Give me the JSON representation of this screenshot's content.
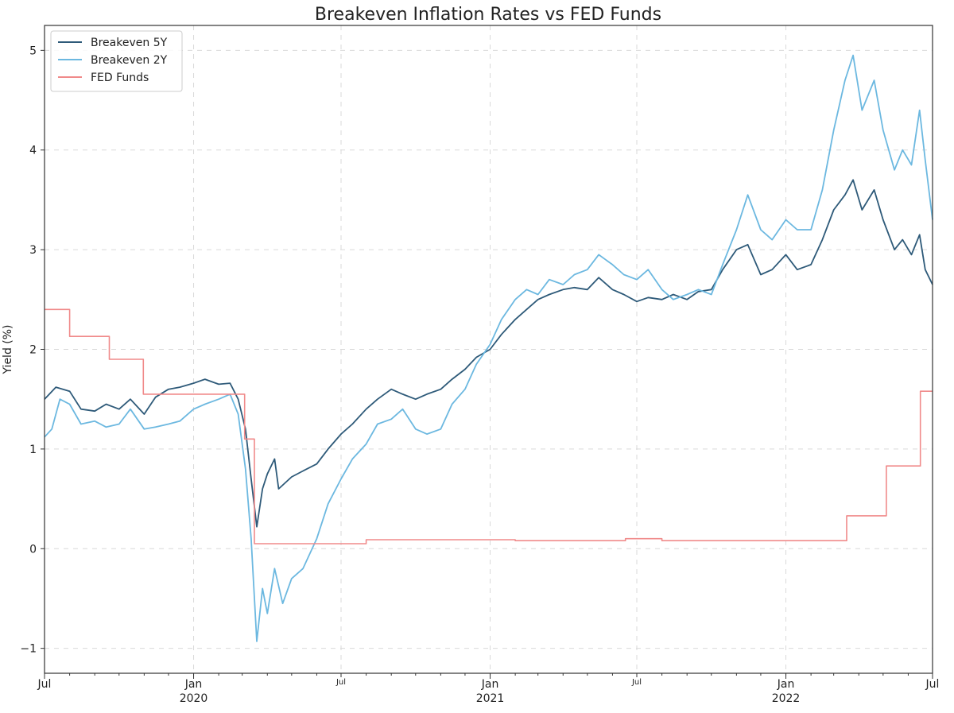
{
  "chart_data": {
    "type": "line",
    "title": "Breakeven Inflation Rates vs FED Funds",
    "xlabel": "",
    "ylabel": "Yield (%)",
    "ylim": [
      -1.25,
      5.25
    ],
    "xlim": [
      "2019-07-01",
      "2022-07-01"
    ],
    "grid": true,
    "legend_position": "top-left",
    "y_ticks": [
      -1,
      0,
      1,
      2,
      3,
      4,
      5
    ],
    "y_tick_labels": [
      "−1",
      "0",
      "1",
      "2",
      "3",
      "4",
      "5"
    ],
    "x_major_ticks": [
      {
        "date": "2019-07-01",
        "label": "Jul",
        "sublabel": ""
      },
      {
        "date": "2020-01-01",
        "label": "Jan",
        "sublabel": "2020"
      },
      {
        "date": "2020-07-01",
        "label": "Jul",
        "sublabel": ""
      },
      {
        "date": "2021-01-01",
        "label": "Jan",
        "sublabel": "2021"
      },
      {
        "date": "2021-07-01",
        "label": "Jul",
        "sublabel": ""
      },
      {
        "date": "2022-01-01",
        "label": "Jan",
        "sublabel": "2022"
      },
      {
        "date": "2022-07-01",
        "label": "Jul",
        "sublabel": ""
      }
    ],
    "series": [
      {
        "name": "Breakeven 5Y",
        "color": "#2e5a79",
        "step": false,
        "points": [
          [
            "2019-07-01",
            1.5
          ],
          [
            "2019-07-15",
            1.62
          ],
          [
            "2019-08-01",
            1.58
          ],
          [
            "2019-08-15",
            1.4
          ],
          [
            "2019-09-01",
            1.38
          ],
          [
            "2019-09-15",
            1.45
          ],
          [
            "2019-10-01",
            1.4
          ],
          [
            "2019-10-15",
            1.5
          ],
          [
            "2019-11-01",
            1.35
          ],
          [
            "2019-11-15",
            1.52
          ],
          [
            "2019-12-01",
            1.6
          ],
          [
            "2019-12-15",
            1.62
          ],
          [
            "2020-01-01",
            1.66
          ],
          [
            "2020-01-15",
            1.7
          ],
          [
            "2020-02-01",
            1.65
          ],
          [
            "2020-02-15",
            1.66
          ],
          [
            "2020-02-25",
            1.5
          ],
          [
            "2020-03-05",
            1.2
          ],
          [
            "2020-03-12",
            0.7
          ],
          [
            "2020-03-19",
            0.22
          ],
          [
            "2020-03-26",
            0.6
          ],
          [
            "2020-04-01",
            0.75
          ],
          [
            "2020-04-10",
            0.9
          ],
          [
            "2020-04-15",
            0.6
          ],
          [
            "2020-05-01",
            0.72
          ],
          [
            "2020-05-15",
            0.78
          ],
          [
            "2020-06-01",
            0.85
          ],
          [
            "2020-06-15",
            1.0
          ],
          [
            "2020-07-01",
            1.15
          ],
          [
            "2020-07-15",
            1.25
          ],
          [
            "2020-08-01",
            1.4
          ],
          [
            "2020-08-15",
            1.5
          ],
          [
            "2020-09-01",
            1.6
          ],
          [
            "2020-09-15",
            1.55
          ],
          [
            "2020-10-01",
            1.5
          ],
          [
            "2020-10-15",
            1.55
          ],
          [
            "2020-11-01",
            1.6
          ],
          [
            "2020-11-15",
            1.7
          ],
          [
            "2020-12-01",
            1.8
          ],
          [
            "2020-12-15",
            1.92
          ],
          [
            "2021-01-01",
            2.0
          ],
          [
            "2021-01-15",
            2.15
          ],
          [
            "2021-02-01",
            2.3
          ],
          [
            "2021-02-15",
            2.4
          ],
          [
            "2021-03-01",
            2.5
          ],
          [
            "2021-03-15",
            2.55
          ],
          [
            "2021-04-01",
            2.6
          ],
          [
            "2021-04-15",
            2.62
          ],
          [
            "2021-05-01",
            2.6
          ],
          [
            "2021-05-15",
            2.72
          ],
          [
            "2021-06-01",
            2.6
          ],
          [
            "2021-06-15",
            2.55
          ],
          [
            "2021-07-01",
            2.48
          ],
          [
            "2021-07-15",
            2.52
          ],
          [
            "2021-08-01",
            2.5
          ],
          [
            "2021-08-15",
            2.55
          ],
          [
            "2021-09-01",
            2.5
          ],
          [
            "2021-09-15",
            2.58
          ],
          [
            "2021-10-01",
            2.6
          ],
          [
            "2021-10-15",
            2.8
          ],
          [
            "2021-11-01",
            3.0
          ],
          [
            "2021-11-15",
            3.05
          ],
          [
            "2021-12-01",
            2.75
          ],
          [
            "2021-12-15",
            2.8
          ],
          [
            "2022-01-01",
            2.95
          ],
          [
            "2022-01-15",
            2.8
          ],
          [
            "2022-02-01",
            2.85
          ],
          [
            "2022-02-15",
            3.1
          ],
          [
            "2022-03-01",
            3.4
          ],
          [
            "2022-03-15",
            3.55
          ],
          [
            "2022-03-25",
            3.7
          ],
          [
            "2022-04-05",
            3.4
          ],
          [
            "2022-04-20",
            3.6
          ],
          [
            "2022-05-01",
            3.3
          ],
          [
            "2022-05-15",
            3.0
          ],
          [
            "2022-05-25",
            3.1
          ],
          [
            "2022-06-05",
            2.95
          ],
          [
            "2022-06-15",
            3.15
          ],
          [
            "2022-06-22",
            2.8
          ],
          [
            "2022-07-01",
            2.65
          ]
        ]
      },
      {
        "name": "Breakeven 2Y",
        "color": "#6cb8e0",
        "step": false,
        "points": [
          [
            "2019-07-01",
            1.12
          ],
          [
            "2019-07-10",
            1.2
          ],
          [
            "2019-07-20",
            1.5
          ],
          [
            "2019-08-01",
            1.45
          ],
          [
            "2019-08-15",
            1.25
          ],
          [
            "2019-09-01",
            1.28
          ],
          [
            "2019-09-15",
            1.22
          ],
          [
            "2019-10-01",
            1.25
          ],
          [
            "2019-10-15",
            1.4
          ],
          [
            "2019-11-01",
            1.2
          ],
          [
            "2019-11-15",
            1.22
          ],
          [
            "2019-12-01",
            1.25
          ],
          [
            "2019-12-15",
            1.28
          ],
          [
            "2020-01-01",
            1.4
          ],
          [
            "2020-01-15",
            1.45
          ],
          [
            "2020-02-01",
            1.5
          ],
          [
            "2020-02-15",
            1.55
          ],
          [
            "2020-02-25",
            1.35
          ],
          [
            "2020-03-05",
            0.8
          ],
          [
            "2020-03-12",
            0.1
          ],
          [
            "2020-03-19",
            -0.93
          ],
          [
            "2020-03-26",
            -0.4
          ],
          [
            "2020-04-01",
            -0.65
          ],
          [
            "2020-04-10",
            -0.2
          ],
          [
            "2020-04-20",
            -0.55
          ],
          [
            "2020-05-01",
            -0.3
          ],
          [
            "2020-05-15",
            -0.2
          ],
          [
            "2020-06-01",
            0.1
          ],
          [
            "2020-06-15",
            0.45
          ],
          [
            "2020-07-01",
            0.7
          ],
          [
            "2020-07-15",
            0.9
          ],
          [
            "2020-08-01",
            1.05
          ],
          [
            "2020-08-15",
            1.25
          ],
          [
            "2020-09-01",
            1.3
          ],
          [
            "2020-09-15",
            1.4
          ],
          [
            "2020-10-01",
            1.2
          ],
          [
            "2020-10-15",
            1.15
          ],
          [
            "2020-11-01",
            1.2
          ],
          [
            "2020-11-15",
            1.45
          ],
          [
            "2020-12-01",
            1.6
          ],
          [
            "2020-12-15",
            1.85
          ],
          [
            "2021-01-01",
            2.05
          ],
          [
            "2021-01-15",
            2.3
          ],
          [
            "2021-02-01",
            2.5
          ],
          [
            "2021-02-15",
            2.6
          ],
          [
            "2021-03-01",
            2.55
          ],
          [
            "2021-03-15",
            2.7
          ],
          [
            "2021-04-01",
            2.65
          ],
          [
            "2021-04-15",
            2.75
          ],
          [
            "2021-05-01",
            2.8
          ],
          [
            "2021-05-15",
            2.95
          ],
          [
            "2021-06-01",
            2.85
          ],
          [
            "2021-06-15",
            2.75
          ],
          [
            "2021-07-01",
            2.7
          ],
          [
            "2021-07-15",
            2.8
          ],
          [
            "2021-08-01",
            2.6
          ],
          [
            "2021-08-15",
            2.5
          ],
          [
            "2021-09-01",
            2.55
          ],
          [
            "2021-09-15",
            2.6
          ],
          [
            "2021-10-01",
            2.55
          ],
          [
            "2021-10-15",
            2.85
          ],
          [
            "2021-11-01",
            3.2
          ],
          [
            "2021-11-15",
            3.55
          ],
          [
            "2021-12-01",
            3.2
          ],
          [
            "2021-12-15",
            3.1
          ],
          [
            "2022-01-01",
            3.3
          ],
          [
            "2022-01-15",
            3.2
          ],
          [
            "2022-02-01",
            3.2
          ],
          [
            "2022-02-15",
            3.6
          ],
          [
            "2022-03-01",
            4.2
          ],
          [
            "2022-03-15",
            4.7
          ],
          [
            "2022-03-25",
            4.95
          ],
          [
            "2022-04-05",
            4.4
          ],
          [
            "2022-04-20",
            4.7
          ],
          [
            "2022-05-01",
            4.2
          ],
          [
            "2022-05-15",
            3.8
          ],
          [
            "2022-05-25",
            4.0
          ],
          [
            "2022-06-05",
            3.85
          ],
          [
            "2022-06-15",
            4.4
          ],
          [
            "2022-06-22",
            3.9
          ],
          [
            "2022-07-01",
            3.3
          ]
        ]
      },
      {
        "name": "FED Funds",
        "color": "#f08a8a",
        "step": true,
        "points": [
          [
            "2019-07-01",
            2.4
          ],
          [
            "2019-08-01",
            2.13
          ],
          [
            "2019-09-19",
            1.9
          ],
          [
            "2019-10-31",
            1.55
          ],
          [
            "2020-03-04",
            1.1
          ],
          [
            "2020-03-16",
            0.05
          ],
          [
            "2020-08-01",
            0.09
          ],
          [
            "2021-02-01",
            0.08
          ],
          [
            "2021-06-17",
            0.1
          ],
          [
            "2021-08-01",
            0.08
          ],
          [
            "2022-03-17",
            0.33
          ],
          [
            "2022-05-05",
            0.83
          ],
          [
            "2022-06-16",
            1.58
          ],
          [
            "2022-07-01",
            1.58
          ]
        ]
      }
    ]
  }
}
